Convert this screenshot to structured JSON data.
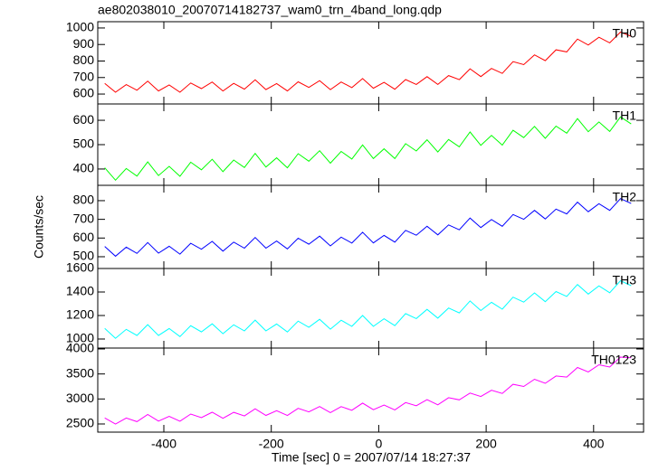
{
  "title": "ae802038010_20070714182737_wam0_trn_4band_long.qdp",
  "ylabel": "Counts/sec",
  "xlabel": "Time [sec] 0 = 2007/07/14 18:27:37",
  "chart_data": [
    {
      "type": "line",
      "label": "TH0",
      "color": "#ff0000",
      "x": [
        -510,
        -490,
        -470,
        -450,
        -430,
        -410,
        -390,
        -370,
        -350,
        -330,
        -310,
        -290,
        -270,
        -250,
        -230,
        -210,
        -190,
        -170,
        -150,
        -130,
        -110,
        -90,
        -70,
        -50,
        -30,
        -10,
        10,
        30,
        50,
        70,
        90,
        110,
        130,
        150,
        170,
        190,
        210,
        230,
        250,
        270,
        290,
        310,
        330,
        350,
        370,
        390,
        410,
        430,
        450,
        470
      ],
      "values": [
        665,
        611,
        657,
        623,
        678,
        619,
        655,
        611,
        667,
        633,
        673,
        619,
        665,
        630,
        686,
        627,
        663,
        619,
        674,
        640,
        681,
        627,
        673,
        639,
        694,
        635,
        671,
        629,
        688,
        658,
        705,
        658,
        712,
        687,
        753,
        706,
        755,
        725,
        796,
        778,
        837,
        802,
        868,
        855,
        933,
        897,
        944,
        910,
        975,
        950
      ],
      "xlim": [
        -523,
        493
      ],
      "ylim": [
        540,
        1038
      ],
      "yticks": [
        600,
        700,
        800,
        900,
        1000
      ]
    },
    {
      "type": "line",
      "label": "TH1",
      "color": "#00ff00",
      "x": [
        -510,
        -490,
        -470,
        -450,
        -430,
        -410,
        -390,
        -370,
        -350,
        -330,
        -310,
        -290,
        -270,
        -250,
        -230,
        -210,
        -190,
        -170,
        -150,
        -130,
        -110,
        -90,
        -70,
        -50,
        -30,
        -10,
        10,
        30,
        50,
        70,
        90,
        110,
        130,
        150,
        170,
        190,
        210,
        230,
        250,
        270,
        290,
        310,
        330,
        350,
        370,
        390,
        410,
        430,
        450,
        470
      ],
      "values": [
        405,
        354,
        402,
        371,
        429,
        373,
        411,
        370,
        428,
        397,
        440,
        389,
        437,
        406,
        464,
        408,
        446,
        405,
        463,
        432,
        475,
        424,
        472,
        441,
        499,
        443,
        483,
        443,
        504,
        474,
        520,
        470,
        521,
        491,
        552,
        497,
        538,
        498,
        559,
        529,
        575,
        526,
        576,
        547,
        607,
        553,
        593,
        554,
        614,
        585
      ],
      "xlim": [
        -523,
        493
      ],
      "ylim": [
        333,
        667
      ],
      "yticks": [
        400,
        500,
        600
      ]
    },
    {
      "type": "line",
      "label": "TH2",
      "color": "#0000ff",
      "x": [
        -510,
        -490,
        -470,
        -450,
        -430,
        -410,
        -390,
        -370,
        -350,
        -330,
        -310,
        -290,
        -270,
        -250,
        -230,
        -210,
        -190,
        -170,
        -150,
        -130,
        -110,
        -90,
        -70,
        -50,
        -30,
        -10,
        10,
        30,
        50,
        70,
        90,
        110,
        130,
        150,
        170,
        190,
        210,
        230,
        250,
        270,
        290,
        310,
        330,
        350,
        370,
        390,
        410,
        430,
        450,
        470
      ],
      "values": [
        555,
        503,
        551,
        518,
        576,
        519,
        556,
        514,
        572,
        540,
        582,
        530,
        578,
        546,
        603,
        546,
        584,
        542,
        599,
        567,
        610,
        558,
        605,
        573,
        631,
        574,
        614,
        578,
        641,
        615,
        663,
        617,
        670,
        644,
        707,
        656,
        699,
        663,
        726,
        700,
        748,
        702,
        755,
        729,
        792,
        741,
        784,
        748,
        811,
        785
      ],
      "xlim": [
        -523,
        493
      ],
      "ylim": [
        437,
        882
      ],
      "yticks": [
        500,
        600,
        700,
        800
      ]
    },
    {
      "type": "line",
      "label": "TH3",
      "color": "#00ffff",
      "x": [
        -510,
        -490,
        -470,
        -450,
        -430,
        -410,
        -390,
        -370,
        -350,
        -330,
        -310,
        -290,
        -270,
        -250,
        -230,
        -210,
        -190,
        -170,
        -150,
        -130,
        -110,
        -90,
        -70,
        -50,
        -30,
        -10,
        10,
        30,
        50,
        70,
        90,
        110,
        130,
        150,
        170,
        190,
        210,
        230,
        250,
        270,
        290,
        310,
        330,
        350,
        370,
        390,
        410,
        430,
        450,
        470
      ],
      "values": [
        1090,
        1006,
        1082,
        1030,
        1122,
        1030,
        1089,
        1021,
        1113,
        1061,
        1129,
        1045,
        1121,
        1069,
        1161,
        1069,
        1128,
        1060,
        1152,
        1100,
        1168,
        1084,
        1160,
        1108,
        1200,
        1108,
        1172,
        1114,
        1216,
        1174,
        1252,
        1178,
        1264,
        1222,
        1324,
        1242,
        1312,
        1254,
        1356,
        1314,
        1392,
        1318,
        1404,
        1362,
        1464,
        1382,
        1452,
        1394,
        1496,
        1454
      ],
      "xlim": [
        -523,
        493
      ],
      "ylim": [
        923,
        1600
      ],
      "yticks": [
        1000,
        1200,
        1400,
        1600
      ]
    },
    {
      "type": "line",
      "label": "TH0123",
      "color": "#ff00ff",
      "x": [
        -510,
        -490,
        -470,
        -450,
        -430,
        -410,
        -390,
        -370,
        -350,
        -330,
        -310,
        -290,
        -270,
        -250,
        -230,
        -210,
        -190,
        -170,
        -150,
        -130,
        -110,
        -90,
        -70,
        -50,
        -30,
        -10,
        10,
        30,
        50,
        70,
        90,
        110,
        130,
        150,
        170,
        190,
        210,
        230,
        250,
        270,
        290,
        310,
        330,
        350,
        370,
        390,
        410,
        430,
        450,
        470
      ],
      "values": [
        2620,
        2499,
        2619,
        2546,
        2690,
        2557,
        2652,
        2556,
        2699,
        2627,
        2734,
        2613,
        2733,
        2660,
        2804,
        2671,
        2766,
        2670,
        2813,
        2741,
        2848,
        2727,
        2847,
        2774,
        2918,
        2785,
        2877,
        2781,
        2928,
        2864,
        2985,
        2883,
        3026,
        2982,
        3118,
        3050,
        3174,
        3111,
        3293,
        3249,
        3395,
        3313,
        3459,
        3437,
        3629,
        3540,
        3684,
        3638,
        3838,
        3824
      ],
      "xlim": [
        -523,
        493
      ],
      "ylim": [
        2337,
        4018
      ],
      "yticks": [
        2500,
        3000,
        3500,
        4000
      ],
      "xticks": [
        -400,
        -200,
        0,
        200,
        400
      ]
    }
  ]
}
